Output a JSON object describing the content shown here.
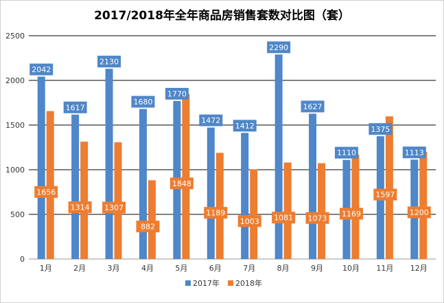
{
  "chart_data": {
    "type": "bar",
    "title": "2017/2018年全年商品房销售套数对比图（套）",
    "categories": [
      "1月",
      "2月",
      "3月",
      "4月",
      "5月",
      "6月",
      "7月",
      "8月",
      "9月",
      "10月",
      "11月",
      "12月"
    ],
    "series": [
      {
        "name": "2017年",
        "color": "#4f87c8",
        "label_bg": "#4f87c8",
        "label_color": "#ffffff",
        "values": [
          2042,
          1617,
          2130,
          1680,
          1770,
          1472,
          1412,
          2290,
          1627,
          1110,
          1375,
          1113
        ]
      },
      {
        "name": "2018年",
        "color": "#ed7d31",
        "label_bg": "#ed7d31",
        "label_color": "#ffffff",
        "values": [
          1656,
          1314,
          1307,
          882,
          1848,
          1189,
          1003,
          1081,
          1073,
          1169,
          1597,
          1200
        ]
      }
    ],
    "ylim": [
      0,
      2500
    ],
    "yticks": [
      0,
      500,
      1000,
      1500,
      2000,
      2500
    ],
    "xlabel": "",
    "ylabel": "",
    "grid": true,
    "legend_position": "bottom"
  }
}
